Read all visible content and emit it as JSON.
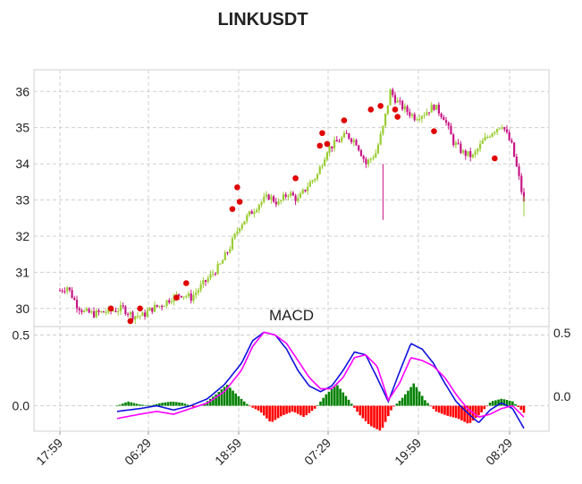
{
  "chart_data": [
    {
      "type": "candlestick",
      "title": "LINKUSDT",
      "ylim": [
        29.5,
        36.6
      ],
      "yticks": [
        30,
        31,
        32,
        33,
        34,
        35,
        36
      ],
      "x_tick_labels": [
        "17:59",
        "06:29",
        "18:59",
        "07:29",
        "19:59",
        "08:29"
      ],
      "price_path": [
        [
          0,
          30.5
        ],
        [
          3,
          30.6
        ],
        [
          7,
          30.1
        ],
        [
          10,
          29.9
        ],
        [
          14,
          29.85
        ],
        [
          18,
          29.9
        ],
        [
          22,
          29.95
        ],
        [
          26,
          30.0
        ],
        [
          30,
          29.8
        ],
        [
          34,
          29.8
        ],
        [
          38,
          30.0
        ],
        [
          42,
          30.1
        ],
        [
          46,
          30.3
        ],
        [
          50,
          30.4
        ],
        [
          54,
          30.3
        ],
        [
          58,
          30.6
        ],
        [
          62,
          30.9
        ],
        [
          66,
          31.2
        ],
        [
          70,
          31.7
        ],
        [
          74,
          32.3
        ],
        [
          78,
          32.6
        ],
        [
          82,
          32.9
        ],
        [
          86,
          33.1
        ],
        [
          90,
          32.9
        ],
        [
          94,
          33.2
        ],
        [
          98,
          33.0
        ],
        [
          102,
          33.4
        ],
        [
          106,
          33.7
        ],
        [
          110,
          34.4
        ],
        [
          114,
          34.6
        ],
        [
          118,
          34.8
        ],
        [
          122,
          34.6
        ],
        [
          126,
          34.0
        ],
        [
          130,
          34.3
        ],
        [
          133,
          35.0
        ],
        [
          136,
          36.0
        ],
        [
          139,
          35.7
        ],
        [
          142,
          35.5
        ],
        [
          146,
          35.3
        ],
        [
          150,
          35.4
        ],
        [
          154,
          35.6
        ],
        [
          158,
          35.3
        ],
        [
          162,
          34.6
        ],
        [
          166,
          34.3
        ],
        [
          170,
          34.2
        ],
        [
          174,
          34.6
        ],
        [
          178,
          34.9
        ],
        [
          182,
          35.1
        ],
        [
          186,
          34.5
        ],
        [
          189,
          33.6
        ],
        [
          191,
          32.9
        ]
      ],
      "markers": [
        [
          21,
          30.0
        ],
        [
          29,
          29.65
        ],
        [
          33,
          30.0
        ],
        [
          48,
          30.3
        ],
        [
          52,
          30.7
        ],
        [
          71,
          32.75
        ],
        [
          73,
          33.35
        ],
        [
          74,
          32.95
        ],
        [
          97,
          33.6
        ],
        [
          107,
          34.5
        ],
        [
          108,
          34.85
        ],
        [
          110,
          34.55
        ],
        [
          117,
          35.2
        ],
        [
          128,
          35.5
        ],
        [
          132,
          35.6
        ],
        [
          138,
          35.5
        ],
        [
          139,
          35.3
        ],
        [
          154,
          34.9
        ],
        [
          179,
          34.15
        ]
      ],
      "series_colors": {
        "up": "#9acd32",
        "down": "#c71585",
        "marker": "#e00000"
      }
    },
    {
      "type": "line+bar",
      "title": "MACD",
      "ylim": [
        -0.18,
        0.56
      ],
      "yticks_left": [
        "0.0",
        "0.5"
      ],
      "yticks_right": [
        "0.0",
        "0.5"
      ],
      "macd_path": [
        [
          0,
          -0.04
        ],
        [
          8,
          -0.02
        ],
        [
          14,
          0.0
        ],
        [
          20,
          -0.03
        ],
        [
          26,
          0.0
        ],
        [
          32,
          0.05
        ],
        [
          38,
          0.15
        ],
        [
          44,
          0.3
        ],
        [
          48,
          0.46
        ],
        [
          52,
          0.52
        ],
        [
          56,
          0.5
        ],
        [
          60,
          0.4
        ],
        [
          64,
          0.25
        ],
        [
          68,
          0.14
        ],
        [
          72,
          0.1
        ],
        [
          76,
          0.14
        ],
        [
          80,
          0.25
        ],
        [
          84,
          0.38
        ],
        [
          88,
          0.36
        ],
        [
          92,
          0.2
        ],
        [
          96,
          0.03
        ],
        [
          100,
          0.24
        ],
        [
          104,
          0.44
        ],
        [
          108,
          0.4
        ],
        [
          112,
          0.3
        ],
        [
          116,
          0.16
        ],
        [
          120,
          0.03
        ],
        [
          124,
          -0.05
        ],
        [
          128,
          -0.12
        ],
        [
          132,
          -0.03
        ],
        [
          136,
          0.02
        ],
        [
          140,
          -0.02
        ],
        [
          144,
          -0.16
        ]
      ],
      "signal_path": [
        [
          0,
          -0.09
        ],
        [
          8,
          -0.06
        ],
        [
          14,
          -0.04
        ],
        [
          20,
          -0.06
        ],
        [
          26,
          -0.02
        ],
        [
          32,
          0.02
        ],
        [
          38,
          0.1
        ],
        [
          44,
          0.25
        ],
        [
          48,
          0.42
        ],
        [
          52,
          0.52
        ],
        [
          56,
          0.5
        ],
        [
          60,
          0.44
        ],
        [
          64,
          0.32
        ],
        [
          68,
          0.2
        ],
        [
          72,
          0.12
        ],
        [
          76,
          0.12
        ],
        [
          80,
          0.2
        ],
        [
          84,
          0.34
        ],
        [
          88,
          0.36
        ],
        [
          92,
          0.28
        ],
        [
          96,
          0.04
        ],
        [
          100,
          0.16
        ],
        [
          104,
          0.34
        ],
        [
          108,
          0.32
        ],
        [
          112,
          0.28
        ],
        [
          116,
          0.2
        ],
        [
          120,
          0.08
        ],
        [
          124,
          -0.02
        ],
        [
          128,
          -0.08
        ],
        [
          132,
          -0.06
        ],
        [
          136,
          -0.02
        ],
        [
          140,
          0.0
        ],
        [
          144,
          -0.08
        ]
      ],
      "histogram_path": [
        [
          0,
          0.0
        ],
        [
          4,
          0.03
        ],
        [
          8,
          0.01
        ],
        [
          12,
          0.0
        ],
        [
          16,
          0.02
        ],
        [
          20,
          0.03
        ],
        [
          24,
          0.02
        ],
        [
          28,
          -0.01
        ],
        [
          32,
          0.02
        ],
        [
          36,
          0.08
        ],
        [
          40,
          0.15
        ],
        [
          44,
          0.07
        ],
        [
          48,
          0.0
        ],
        [
          52,
          -0.04
        ],
        [
          56,
          -0.12
        ],
        [
          60,
          -0.07
        ],
        [
          64,
          -0.04
        ],
        [
          68,
          -0.08
        ],
        [
          72,
          -0.02
        ],
        [
          76,
          0.08
        ],
        [
          80,
          0.15
        ],
        [
          84,
          0.05
        ],
        [
          88,
          -0.06
        ],
        [
          92,
          -0.14
        ],
        [
          96,
          -0.18
        ],
        [
          100,
          -0.02
        ],
        [
          104,
          0.06
        ],
        [
          108,
          0.16
        ],
        [
          112,
          0.04
        ],
        [
          116,
          -0.04
        ],
        [
          120,
          -0.07
        ],
        [
          124,
          -0.09
        ],
        [
          128,
          -0.13
        ],
        [
          132,
          -0.06
        ],
        [
          136,
          0.03
        ],
        [
          140,
          0.05
        ],
        [
          144,
          0.03
        ],
        [
          148,
          -0.05
        ]
      ],
      "series_colors": {
        "macd": "#1010dd",
        "signal": "#ff00ff",
        "hist_up": "#008000",
        "hist_down": "#ff0000"
      }
    }
  ]
}
